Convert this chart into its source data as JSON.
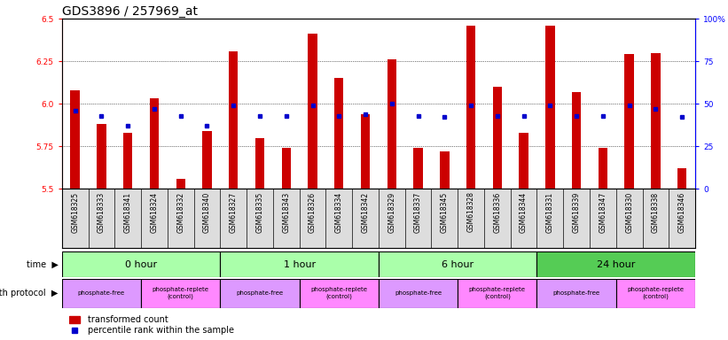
{
  "title": "GDS3896 / 257969_at",
  "samples": [
    "GSM618325",
    "GSM618333",
    "GSM618341",
    "GSM618324",
    "GSM618332",
    "GSM618340",
    "GSM618327",
    "GSM618335",
    "GSM618343",
    "GSM618326",
    "GSM618334",
    "GSM618342",
    "GSM618329",
    "GSM618337",
    "GSM618345",
    "GSM618328",
    "GSM618336",
    "GSM618344",
    "GSM618331",
    "GSM618339",
    "GSM618347",
    "GSM618330",
    "GSM618338",
    "GSM618346"
  ],
  "transformed_count": [
    6.08,
    5.88,
    5.83,
    6.03,
    5.56,
    5.84,
    6.31,
    5.8,
    5.74,
    6.41,
    6.15,
    5.94,
    6.26,
    5.74,
    5.72,
    6.46,
    6.1,
    5.83,
    6.46,
    6.07,
    5.74,
    6.29,
    6.3,
    5.62
  ],
  "percentile_rank": [
    5.96,
    5.93,
    5.87,
    5.97,
    5.93,
    5.87,
    5.99,
    5.93,
    5.93,
    5.99,
    5.93,
    5.94,
    6.0,
    5.93,
    5.92,
    5.99,
    5.93,
    5.93,
    5.99,
    5.93,
    5.93,
    5.99,
    5.97,
    5.92
  ],
  "ylim": [
    5.5,
    6.5
  ],
  "yticks_left": [
    5.5,
    5.75,
    6.0,
    6.25,
    6.5
  ],
  "yticks_right": [
    0,
    25,
    50,
    75,
    100
  ],
  "ytick_right_labels": [
    "0",
    "25",
    "50",
    "75",
    "100%"
  ],
  "bar_color": "#cc0000",
  "dot_color": "#0000cc",
  "background_color": "#ffffff",
  "plot_bg_color": "#ffffff",
  "sample_bg_color": "#dddddd",
  "time_groups": [
    {
      "label": "0 hour",
      "start": 0,
      "end": 6,
      "color": "#aaffaa"
    },
    {
      "label": "1 hour",
      "start": 6,
      "end": 12,
      "color": "#aaffaa"
    },
    {
      "label": "6 hour",
      "start": 12,
      "end": 18,
      "color": "#aaffaa"
    },
    {
      "label": "24 hour",
      "start": 18,
      "end": 24,
      "color": "#55cc55"
    }
  ],
  "protocol_groups": [
    {
      "label": "phosphate-free",
      "start": 0,
      "end": 3,
      "color": "#dd99ff"
    },
    {
      "label": "phosphate-replete\n(control)",
      "start": 3,
      "end": 6,
      "color": "#ff88ff"
    },
    {
      "label": "phosphate-free",
      "start": 6,
      "end": 9,
      "color": "#dd99ff"
    },
    {
      "label": "phosphate-replete\n(control)",
      "start": 9,
      "end": 12,
      "color": "#ff88ff"
    },
    {
      "label": "phosphate-free",
      "start": 12,
      "end": 15,
      "color": "#dd99ff"
    },
    {
      "label": "phosphate-replete\n(control)",
      "start": 15,
      "end": 18,
      "color": "#ff88ff"
    },
    {
      "label": "phosphate-free",
      "start": 18,
      "end": 21,
      "color": "#dd99ff"
    },
    {
      "label": "phosphate-replete\n(control)",
      "start": 21,
      "end": 24,
      "color": "#ff88ff"
    }
  ],
  "title_fontsize": 10,
  "tick_fontsize": 6.5,
  "label_fontsize": 7.5,
  "bar_width": 0.35
}
